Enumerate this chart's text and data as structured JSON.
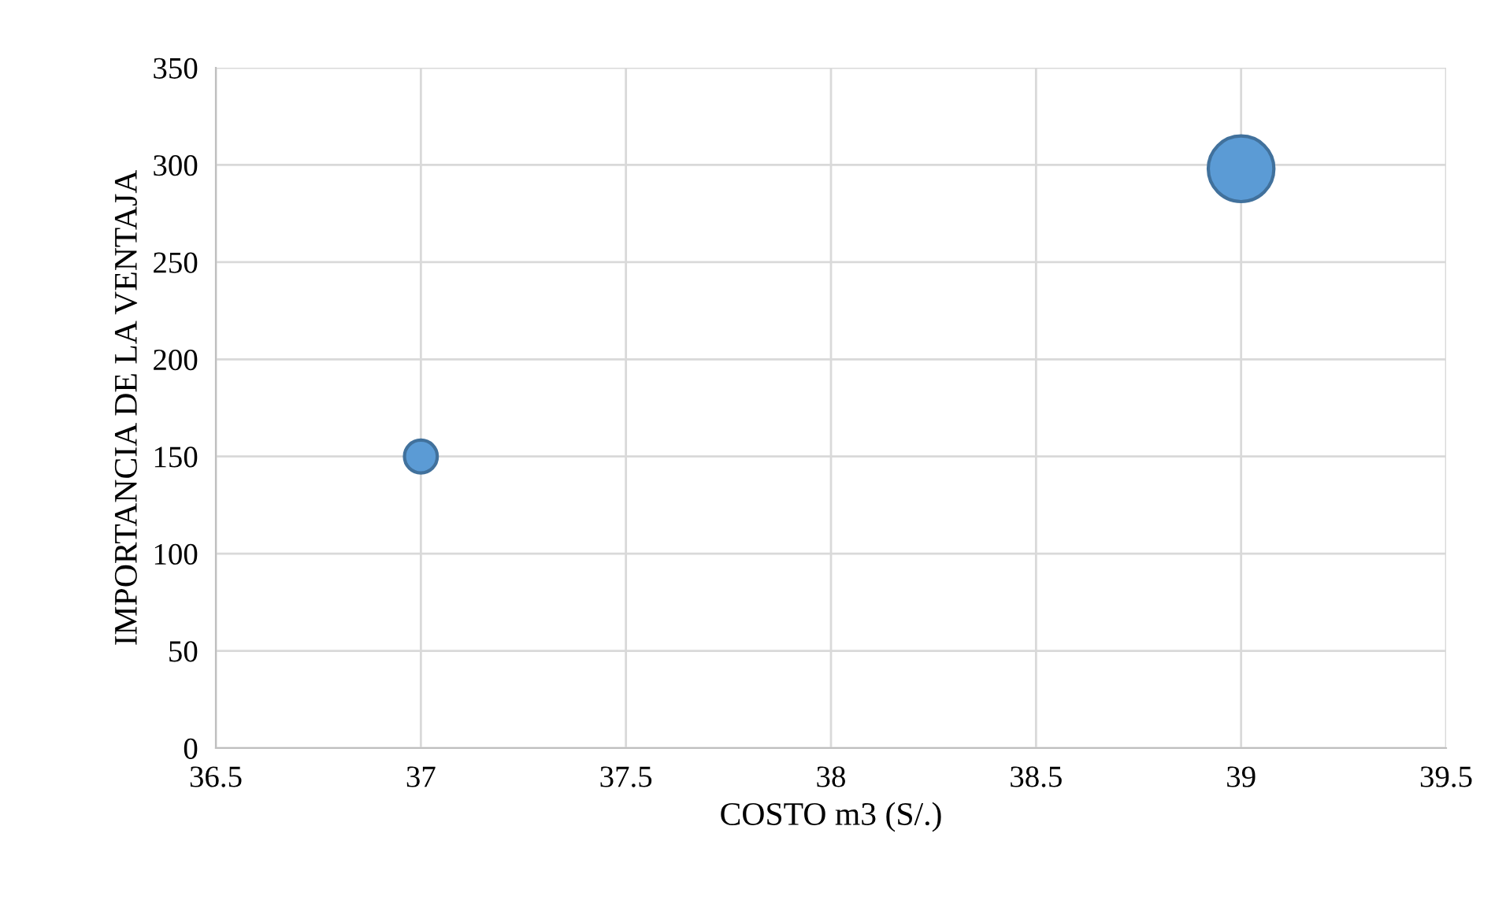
{
  "chart_data": {
    "type": "bubble",
    "xlabel": "COSTO m3 (S/.)",
    "ylabel": "IMPORTANCIA DE LA VENTAJA",
    "series": [
      {
        "color": "#5b9bd5",
        "x": [
          37,
          39
        ],
        "values": [
          150,
          298
        ],
        "sizes": [
          0.25,
          1
        ]
      }
    ],
    "xlim": [
      36.5,
      39.5
    ],
    "xticks": [
      36.5,
      37,
      37.5,
      38,
      38.5,
      39,
      39.5
    ],
    "ylim": [
      0,
      350
    ],
    "yticks": [
      0,
      50,
      100,
      150,
      200,
      250,
      300,
      350
    ],
    "grid": true,
    "legend": false
  }
}
